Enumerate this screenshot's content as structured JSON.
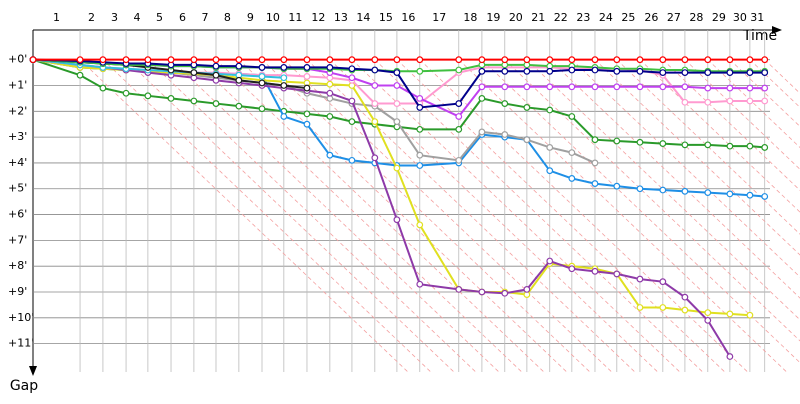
{
  "chart_data": {
    "type": "line",
    "x_label": "Time",
    "y_label": "Gap",
    "categories": [
      null,
      "1",
      "2",
      "3",
      "4",
      "5",
      "6",
      "7",
      "8",
      "9",
      "10",
      "11",
      "12",
      "13",
      "14",
      "15",
      "16",
      "17",
      "18",
      "19",
      "20",
      "21",
      "22",
      "23",
      "24",
      "25",
      "26",
      "27",
      "28",
      "29",
      "30",
      "31"
    ],
    "x": [
      0,
      1.81,
      2.69,
      3.58,
      4.42,
      5.31,
      6.19,
      7.04,
      7.92,
      8.81,
      9.65,
      10.54,
      11.42,
      12.27,
      13.15,
      14.0,
      14.88,
      16.38,
      17.27,
      18.15,
      19.0,
      19.88,
      20.73,
      21.62,
      22.46,
      23.35,
      24.23,
      25.08,
      25.96,
      26.81,
      27.58,
      28.15
    ],
    "xlim": [
      0,
      29.2
    ],
    "ylim": [
      -1.15,
      12.1
    ],
    "yticks": [
      {
        "value": 0,
        "label": "+0'"
      },
      {
        "value": 1,
        "label": "+1'"
      },
      {
        "value": 2,
        "label": "+2'"
      },
      {
        "value": 3,
        "label": "+3'"
      },
      {
        "value": 4,
        "label": "+4'"
      },
      {
        "value": 5,
        "label": "+5'"
      },
      {
        "value": 6,
        "label": "+6'"
      },
      {
        "value": 7,
        "label": "+7'"
      },
      {
        "value": 8,
        "label": "+8'"
      },
      {
        "value": 9,
        "label": "+9'"
      },
      {
        "value": 10,
        "label": "+10'"
      },
      {
        "value": 11,
        "label": "+11'"
      }
    ],
    "grid": true,
    "series": [
      {
        "color": "#2a9a2a",
        "values": [
          0,
          0.6,
          1.1,
          1.3,
          1.4,
          1.5,
          1.6,
          1.7,
          1.8,
          1.9,
          2.0,
          2.1,
          2.2,
          2.4,
          2.5,
          2.6,
          2.7,
          2.7,
          1.5,
          1.7,
          1.85,
          1.95,
          2.2,
          3.1,
          3.15,
          3.2,
          3.25,
          3.3,
          3.3,
          3.35,
          3.35,
          3.4
        ]
      },
      {
        "color": "#1e8fe6",
        "values": [
          0,
          0.3,
          0.35,
          0.4,
          0.45,
          0.5,
          0.5,
          0.55,
          0.55,
          0.6,
          2.2,
          2.5,
          3.7,
          3.9,
          4.0,
          4.1,
          4.1,
          4.0,
          2.9,
          3.0,
          3.1,
          4.3,
          4.6,
          4.8,
          4.9,
          5.0,
          5.05,
          5.1,
          5.15,
          5.2,
          5.25,
          5.3
        ]
      },
      {
        "color": "#a0a0a0",
        "values": [
          0,
          0.3,
          0.35,
          0.4,
          0.45,
          0.5,
          0.6,
          0.7,
          0.8,
          0.9,
          1.0,
          1.3,
          1.5,
          1.7,
          1.8,
          2.4,
          3.7,
          3.9,
          2.8,
          2.9,
          3.1,
          3.4,
          3.6,
          4.0,
          null,
          null,
          null,
          null,
          null,
          null,
          null,
          null
        ]
      },
      {
        "color": "#e0e020",
        "values": [
          0,
          0.3,
          0.35,
          0.4,
          0.45,
          0.5,
          0.55,
          0.6,
          0.7,
          0.8,
          0.85,
          0.9,
          0.95,
          1.0,
          2.4,
          4.2,
          6.4,
          8.9,
          9.0,
          9.0,
          9.1,
          7.9,
          8.0,
          8.1,
          8.3,
          9.6,
          9.6,
          9.7,
          9.8,
          9.85,
          9.9,
          null
        ]
      },
      {
        "color": "#8e3aa8",
        "values": [
          0,
          0.2,
          0.3,
          0.4,
          0.5,
          0.6,
          0.7,
          0.8,
          0.9,
          1.0,
          1.1,
          1.2,
          1.3,
          1.6,
          3.8,
          6.2,
          8.7,
          8.9,
          9.0,
          9.05,
          8.9,
          7.8,
          8.1,
          8.2,
          8.3,
          8.5,
          8.6,
          9.2,
          10.1,
          11.5,
          null,
          null
        ]
      },
      {
        "color": "#ff9ad0",
        "values": [
          0,
          0.2,
          0.3,
          0.35,
          0.4,
          0.45,
          0.5,
          0.5,
          0.55,
          0.6,
          0.6,
          0.65,
          0.7,
          0.8,
          1.7,
          1.7,
          1.7,
          0.5,
          0.3,
          0.3,
          0.3,
          0.3,
          0.35,
          0.35,
          0.35,
          0.4,
          0.6,
          1.65,
          1.65,
          1.6,
          1.6,
          1.6
        ]
      },
      {
        "color": "#c040f0",
        "values": [
          0,
          0.1,
          0.15,
          0.2,
          0.2,
          0.25,
          0.25,
          0.3,
          0.3,
          0.3,
          0.35,
          0.35,
          0.5,
          0.7,
          1.0,
          1.0,
          1.5,
          2.2,
          1.05,
          1.05,
          1.05,
          1.05,
          1.05,
          1.05,
          1.05,
          1.05,
          1.05,
          1.05,
          1.1,
          1.1,
          1.1,
          1.1
        ]
      },
      {
        "color": "#30c0e0",
        "values": [
          0,
          0.2,
          0.3,
          0.35,
          0.4,
          0.45,
          0.5,
          0.55,
          0.6,
          0.65,
          0.7,
          null,
          null,
          null,
          null,
          null,
          null,
          null,
          null,
          null,
          null,
          null,
          null,
          null,
          null,
          null,
          null,
          null,
          null,
          null,
          null,
          null
        ]
      },
      {
        "color": "#202020",
        "values": [
          0,
          0.1,
          0.15,
          0.2,
          0.3,
          0.4,
          0.5,
          0.6,
          0.8,
          0.9,
          1.0,
          1.1,
          null,
          null,
          null,
          null,
          null,
          null,
          null,
          null,
          null,
          null,
          null,
          null,
          null,
          null,
          null,
          null,
          null,
          null,
          null,
          null
        ]
      },
      {
        "color": "#40c040",
        "values": [
          0,
          0.1,
          0.15,
          0.2,
          0.2,
          0.25,
          0.25,
          0.3,
          0.3,
          0.3,
          0.35,
          0.35,
          0.35,
          0.4,
          0.4,
          0.45,
          0.45,
          0.4,
          0.2,
          0.2,
          0.2,
          0.25,
          0.25,
          0.3,
          0.35,
          0.35,
          0.4,
          0.4,
          0.45,
          0.45,
          0.45,
          0.45
        ]
      },
      {
        "color": "#00008b",
        "values": [
          0,
          0.05,
          0.1,
          0.15,
          0.15,
          0.2,
          0.2,
          0.25,
          0.25,
          0.3,
          0.3,
          0.3,
          0.3,
          0.35,
          0.4,
          0.5,
          1.85,
          1.7,
          0.45,
          0.45,
          0.45,
          0.45,
          0.4,
          0.4,
          0.45,
          0.45,
          0.5,
          0.5,
          0.5,
          0.5,
          0.5,
          0.5
        ]
      },
      {
        "color": "#ff0000",
        "values": [
          0,
          0,
          0,
          0,
          0,
          0,
          0,
          0,
          0,
          0,
          0,
          0,
          0,
          0,
          0,
          0,
          0,
          0,
          0,
          0,
          0,
          0,
          0,
          0,
          0,
          0,
          0,
          0,
          0,
          0,
          0,
          0
        ]
      }
    ]
  }
}
